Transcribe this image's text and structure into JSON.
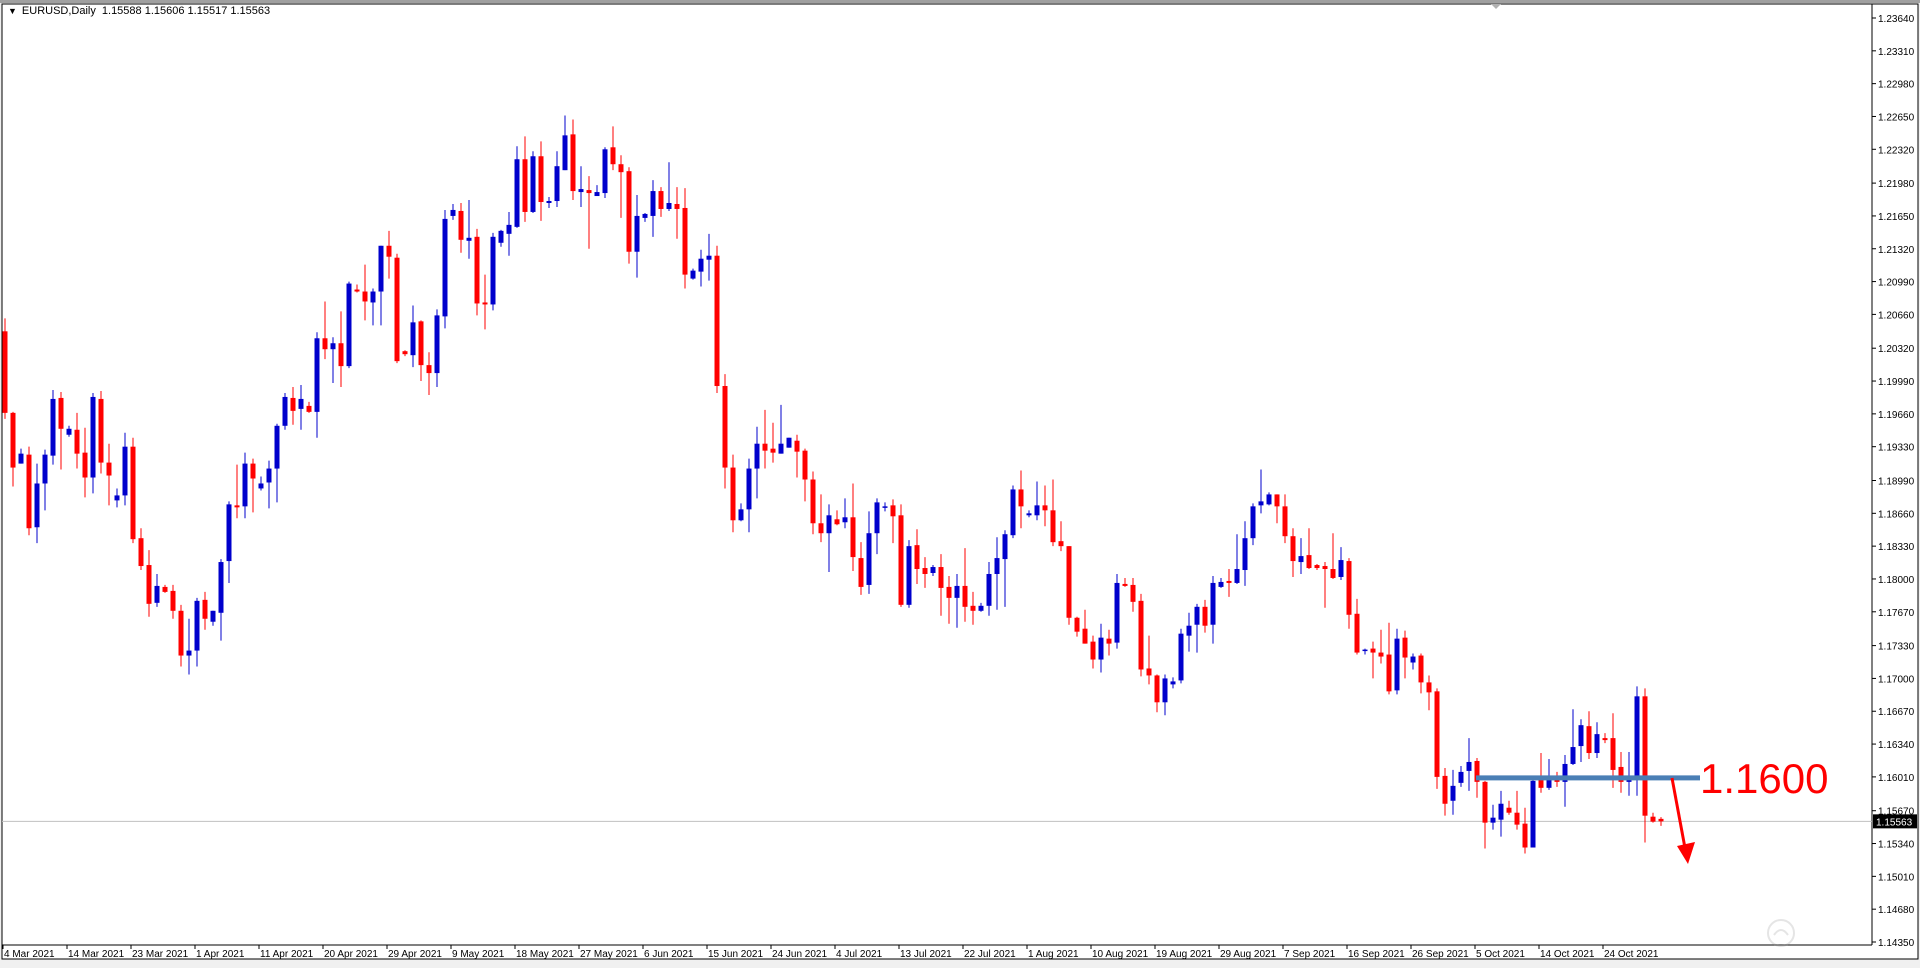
{
  "header": {
    "symbol_timeframe": "EURUSD,Daily",
    "ohlc": [
      "1.15588",
      "1.15606",
      "1.15517",
      "1.15563"
    ]
  },
  "colors": {
    "bull": "#0000cc",
    "bear": "#ff0000",
    "level_line": "#4a7fb5",
    "annotation": "#ff0000",
    "price_line": "#c0c0c0"
  },
  "annotation": {
    "level_text": "1.1600",
    "arrow": "down-arrow"
  },
  "current_price_label": "1.15563",
  "watermark": "汇外网",
  "chart_data": {
    "type": "candlestick",
    "ohlc_order": [
      "open",
      "high",
      "low",
      "close"
    ],
    "ylim": [
      1.1435,
      1.2364
    ],
    "grid": false,
    "y_tick_labels": [
      "1.23640",
      "1.23310",
      "1.22980",
      "1.22650",
      "1.22320",
      "1.21980",
      "1.21650",
      "1.21320",
      "1.20990",
      "1.20660",
      "1.20320",
      "1.19990",
      "1.19660",
      "1.19330",
      "1.18990",
      "1.18660",
      "1.18330",
      "1.18000",
      "1.17670",
      "1.17330",
      "1.17000",
      "1.16670",
      "1.16340",
      "1.16010",
      "1.15670",
      "1.15340",
      "1.15010",
      "1.14680",
      "1.14350"
    ],
    "x_tick_labels": [
      "4 Mar 2021",
      "14 Mar 2021",
      "23 Mar 2021",
      "1 Apr 2021",
      "11 Apr 2021",
      "20 Apr 2021",
      "29 Apr 2021",
      "9 May 2021",
      "18 May 2021",
      "27 May 2021",
      "6 Jun 2021",
      "15 Jun 2021",
      "24 Jun 2021",
      "4 Jul 2021",
      "13 Jul 2021",
      "22 Jul 2021",
      "1 Aug 2021",
      "10 Aug 2021",
      "19 Aug 2021",
      "29 Aug 2021",
      "7 Sep 2021",
      "16 Sep 2021",
      "26 Sep 2021",
      "5 Oct 2021",
      "14 Oct 2021",
      "24 Oct 2021"
    ],
    "bars_per_x_label": 8,
    "horizontal_level": {
      "value": 1.16,
      "from_bar": 184
    },
    "current_price": 1.15563,
    "candles": [
      [
        1.2049,
        1.2062,
        1.1961,
        1.1967
      ],
      [
        1.1967,
        1.1968,
        1.1893,
        1.1912
      ],
      [
        1.1916,
        1.1931,
        1.1916,
        1.1926
      ],
      [
        1.1925,
        1.1933,
        1.1844,
        1.1851
      ],
      [
        1.1852,
        1.1916,
        1.1836,
        1.1896
      ],
      [
        1.1896,
        1.193,
        1.1869,
        1.1925
      ],
      [
        1.1924,
        1.199,
        1.1915,
        1.1981
      ],
      [
        1.1982,
        1.1988,
        1.191,
        1.1951
      ],
      [
        1.1945,
        1.1954,
        1.1943,
        1.1951
      ],
      [
        1.195,
        1.1967,
        1.1911,
        1.1926
      ],
      [
        1.1927,
        1.1952,
        1.1882,
        1.1902
      ],
      [
        1.1902,
        1.1987,
        1.1886,
        1.1983
      ],
      [
        1.1981,
        1.1989,
        1.1906,
        1.1917
      ],
      [
        1.1917,
        1.1936,
        1.1874,
        1.1904
      ],
      [
        1.1879,
        1.1891,
        1.1872,
        1.1884
      ],
      [
        1.1884,
        1.1947,
        1.1874,
        1.1933
      ],
      [
        1.1933,
        1.1942,
        1.1836,
        1.184
      ],
      [
        1.1841,
        1.1851,
        1.1809,
        1.1813
      ],
      [
        1.1814,
        1.1829,
        1.1762,
        1.1775
      ],
      [
        1.1776,
        1.1805,
        1.1772,
        1.1793
      ],
      [
        1.1792,
        1.1794,
        1.1786,
        1.1787
      ],
      [
        1.1788,
        1.1794,
        1.176,
        1.1768
      ],
      [
        1.1768,
        1.1774,
        1.1712,
        1.1723
      ],
      [
        1.1723,
        1.176,
        1.1704,
        1.1728
      ],
      [
        1.1728,
        1.1781,
        1.1712,
        1.1778
      ],
      [
        1.1779,
        1.1787,
        1.1749,
        1.176
      ],
      [
        1.1757,
        1.1768,
        1.1753,
        1.1768
      ],
      [
        1.1766,
        1.182,
        1.1738,
        1.1817
      ],
      [
        1.1818,
        1.1878,
        1.1796,
        1.1875
      ],
      [
        1.1874,
        1.1915,
        1.1861,
        1.1872
      ],
      [
        1.1873,
        1.1927,
        1.1861,
        1.1916
      ],
      [
        1.1916,
        1.1921,
        1.1867,
        1.1901
      ],
      [
        1.1891,
        1.1903,
        1.1889,
        1.1896
      ],
      [
        1.1897,
        1.1919,
        1.1871,
        1.1911
      ],
      [
        1.1911,
        1.1956,
        1.1877,
        1.1954
      ],
      [
        1.1954,
        1.1987,
        1.195,
        1.1983
      ],
      [
        1.1982,
        1.1993,
        1.1955,
        1.1969
      ],
      [
        1.1971,
        1.1995,
        1.195,
        1.1981
      ],
      [
        1.1974,
        1.1978,
        1.1967,
        1.1968
      ],
      [
        1.1968,
        1.2048,
        1.1942,
        1.2042
      ],
      [
        1.2042,
        1.2079,
        1.2021,
        1.2031
      ],
      [
        1.2031,
        1.2043,
        1.1997,
        1.2037
      ],
      [
        1.2037,
        1.2069,
        1.1993,
        1.2014
      ],
      [
        1.2014,
        1.2099,
        1.2012,
        1.2097
      ],
      [
        1.2091,
        1.2096,
        1.2088,
        1.2089
      ],
      [
        1.2089,
        1.2116,
        1.206,
        1.2079
      ],
      [
        1.2078,
        1.2092,
        1.2055,
        1.2089
      ],
      [
        1.2089,
        1.2135,
        1.2055,
        1.2135
      ],
      [
        1.2135,
        1.215,
        1.2102,
        1.2124
      ],
      [
        1.2123,
        1.2127,
        1.2017,
        1.2019
      ],
      [
        1.2029,
        1.203,
        1.2024,
        1.2026
      ],
      [
        1.2025,
        1.2075,
        1.2013,
        1.2058
      ],
      [
        1.2059,
        1.206,
        1.1999,
        1.2015
      ],
      [
        1.2015,
        1.2028,
        1.1985,
        1.2007
      ],
      [
        1.2007,
        1.2071,
        1.1993,
        1.2065
      ],
      [
        1.2064,
        1.2171,
        1.2052,
        1.2162
      ],
      [
        1.2165,
        1.2177,
        1.2161,
        1.2171
      ],
      [
        1.217,
        1.2178,
        1.2128,
        1.2141
      ],
      [
        1.214,
        1.2181,
        1.2122,
        1.2143
      ],
      [
        1.2144,
        1.2152,
        1.2065,
        1.2077
      ],
      [
        1.2078,
        1.2106,
        1.2051,
        1.2076
      ],
      [
        1.2076,
        1.2148,
        1.207,
        1.2144
      ],
      [
        1.2138,
        1.2151,
        1.2134,
        1.215
      ],
      [
        1.2147,
        1.2169,
        1.2125,
        1.2156
      ],
      [
        1.2154,
        1.2235,
        1.2153,
        1.2222
      ],
      [
        1.2222,
        1.2245,
        1.2159,
        1.2169
      ],
      [
        1.2169,
        1.223,
        1.2168,
        1.2225
      ],
      [
        1.2225,
        1.224,
        1.216,
        1.2179
      ],
      [
        1.2178,
        1.2184,
        1.2173,
        1.218
      ],
      [
        1.218,
        1.223,
        1.2174,
        1.2215
      ],
      [
        1.2211,
        1.2266,
        1.2211,
        1.2246
      ],
      [
        1.2247,
        1.2262,
        1.2181,
        1.219
      ],
      [
        1.2189,
        1.2215,
        1.2174,
        1.2192
      ],
      [
        1.2191,
        1.2205,
        1.2132,
        1.2188
      ],
      [
        1.2185,
        1.2196,
        1.2185,
        1.2189
      ],
      [
        1.2188,
        1.2234,
        1.2183,
        1.2232
      ],
      [
        1.2234,
        1.2255,
        1.2211,
        1.2217
      ],
      [
        1.2217,
        1.2226,
        1.2163,
        1.2209
      ],
      [
        1.221,
        1.2214,
        1.2117,
        1.2129
      ],
      [
        1.2129,
        1.2186,
        1.2103,
        1.2165
      ],
      [
        1.2163,
        1.2168,
        1.2159,
        1.2167
      ],
      [
        1.2165,
        1.2201,
        1.2144,
        1.219
      ],
      [
        1.219,
        1.2194,
        1.2164,
        1.2172
      ],
      [
        1.2172,
        1.2219,
        1.217,
        1.2178
      ],
      [
        1.2177,
        1.2194,
        1.2142,
        1.2172
      ],
      [
        1.2173,
        1.2193,
        1.2092,
        1.2106
      ],
      [
        1.2102,
        1.2112,
        1.2101,
        1.211
      ],
      [
        1.2109,
        1.2131,
        1.2094,
        1.2122
      ],
      [
        1.2121,
        1.2147,
        1.21,
        1.2125
      ],
      [
        1.2125,
        1.2135,
        1.1987,
        1.1994
      ],
      [
        1.1994,
        1.2006,
        1.1891,
        1.1912
      ],
      [
        1.1912,
        1.1925,
        1.1847,
        1.1859
      ],
      [
        1.1859,
        1.1876,
        1.1858,
        1.187
      ],
      [
        1.187,
        1.1921,
        1.1847,
        1.1911
      ],
      [
        1.1911,
        1.1953,
        1.1881,
        1.1936
      ],
      [
        1.1936,
        1.197,
        1.1911,
        1.1929
      ],
      [
        1.1931,
        1.1957,
        1.1917,
        1.1927
      ],
      [
        1.1926,
        1.1975,
        1.1926,
        1.1936
      ],
      [
        1.1932,
        1.1942,
        1.1932,
        1.1942
      ],
      [
        1.1939,
        1.1945,
        1.1902,
        1.1928
      ],
      [
        1.1929,
        1.1931,
        1.1878,
        1.19
      ],
      [
        1.19,
        1.1908,
        1.1845,
        1.1856
      ],
      [
        1.1856,
        1.1885,
        1.1837,
        1.1846
      ],
      [
        1.1846,
        1.1875,
        1.1807,
        1.1864
      ],
      [
        1.186,
        1.1869,
        1.1854,
        1.1855
      ],
      [
        1.1857,
        1.1881,
        1.1851,
        1.1862
      ],
      [
        1.1862,
        1.1896,
        1.1808,
        1.1822
      ],
      [
        1.1821,
        1.1837,
        1.1784,
        1.1792
      ],
      [
        1.1794,
        1.1868,
        1.1785,
        1.1846
      ],
      [
        1.1846,
        1.1881,
        1.1825,
        1.1877
      ],
      [
        1.1872,
        1.1877,
        1.1868,
        1.1873
      ],
      [
        1.1874,
        1.188,
        1.1836,
        1.1863
      ],
      [
        1.1864,
        1.1875,
        1.1772,
        1.1774
      ],
      [
        1.1774,
        1.1839,
        1.1771,
        1.1833
      ],
      [
        1.1834,
        1.185,
        1.1795,
        1.181
      ],
      [
        1.1811,
        1.1822,
        1.1791,
        1.1805
      ],
      [
        1.1806,
        1.1814,
        1.1803,
        1.1812
      ],
      [
        1.1812,
        1.1825,
        1.1763,
        1.1791
      ],
      [
        1.1792,
        1.1803,
        1.1755,
        1.1781
      ],
      [
        1.1781,
        1.1805,
        1.1751,
        1.1793
      ],
      [
        1.1793,
        1.1831,
        1.1757,
        1.1772
      ],
      [
        1.1773,
        1.1787,
        1.1754,
        1.1768
      ],
      [
        1.1768,
        1.1776,
        1.1767,
        1.1773
      ],
      [
        1.1773,
        1.1817,
        1.1763,
        1.1805
      ],
      [
        1.1805,
        1.1842,
        1.1769,
        1.1821
      ],
      [
        1.182,
        1.1849,
        1.1772,
        1.1845
      ],
      [
        1.1844,
        1.1894,
        1.1841,
        1.189
      ],
      [
        1.189,
        1.1909,
        1.1851,
        1.1873
      ],
      [
        1.1864,
        1.1869,
        1.1862,
        1.1866
      ],
      [
        1.1864,
        1.1898,
        1.1859,
        1.1874
      ],
      [
        1.1874,
        1.1894,
        1.1853,
        1.1869
      ],
      [
        1.1869,
        1.19,
        1.1833,
        1.1837
      ],
      [
        1.1838,
        1.1858,
        1.1828,
        1.1833
      ],
      [
        1.1833,
        1.1833,
        1.1754,
        1.1761
      ],
      [
        1.1761,
        1.1762,
        1.1742,
        1.1747
      ],
      [
        1.175,
        1.1769,
        1.1735,
        1.1735
      ],
      [
        1.1737,
        1.1743,
        1.171,
        1.1719
      ],
      [
        1.1719,
        1.1755,
        1.1706,
        1.1741
      ],
      [
        1.174,
        1.1749,
        1.1723,
        1.1735
      ],
      [
        1.1736,
        1.1805,
        1.173,
        1.1796
      ],
      [
        1.1795,
        1.1801,
        1.1792,
        1.1793
      ],
      [
        1.1794,
        1.1801,
        1.1767,
        1.1777
      ],
      [
        1.1778,
        1.1785,
        1.1702,
        1.1709
      ],
      [
        1.171,
        1.1743,
        1.1694,
        1.1703
      ],
      [
        1.1703,
        1.1704,
        1.1666,
        1.1676
      ],
      [
        1.1676,
        1.1704,
        1.1663,
        1.17
      ],
      [
        1.1694,
        1.1701,
        1.169,
        1.1697
      ],
      [
        1.1698,
        1.175,
        1.1695,
        1.1745
      ],
      [
        1.1743,
        1.1766,
        1.1727,
        1.1753
      ],
      [
        1.1754,
        1.1775,
        1.1726,
        1.1772
      ],
      [
        1.1772,
        1.1779,
        1.1746,
        1.1753
      ],
      [
        1.1754,
        1.1803,
        1.1735,
        1.1796
      ],
      [
        1.1792,
        1.1801,
        1.1791,
        1.1797
      ],
      [
        1.1798,
        1.181,
        1.1782,
        1.1796
      ],
      [
        1.1796,
        1.1845,
        1.1795,
        1.181
      ],
      [
        1.1809,
        1.1858,
        1.1793,
        1.1841
      ],
      [
        1.1841,
        1.1876,
        1.1834,
        1.1873
      ],
      [
        1.1874,
        1.191,
        1.1866,
        1.1878
      ],
      [
        1.1875,
        1.1887,
        1.1874,
        1.1885
      ],
      [
        1.1885,
        1.1885,
        1.1856,
        1.1873
      ],
      [
        1.1873,
        1.1885,
        1.1836,
        1.1843
      ],
      [
        1.1843,
        1.1851,
        1.1802,
        1.1818
      ],
      [
        1.1817,
        1.1841,
        1.1805,
        1.1823
      ],
      [
        1.1824,
        1.1851,
        1.181,
        1.1811
      ],
      [
        1.1814,
        1.1815,
        1.1809,
        1.1811
      ],
      [
        1.1813,
        1.1817,
        1.1771,
        1.181
      ],
      [
        1.181,
        1.1846,
        1.18,
        1.1801
      ],
      [
        1.1802,
        1.1832,
        1.1799,
        1.1819
      ],
      [
        1.1818,
        1.1821,
        1.175,
        1.1764
      ],
      [
        1.1765,
        1.178,
        1.1724,
        1.1726
      ],
      [
        1.1729,
        1.173,
        1.1724,
        1.1729
      ],
      [
        1.173,
        1.1737,
        1.17,
        1.1726
      ],
      [
        1.1726,
        1.1749,
        1.1715,
        1.1722
      ],
      [
        1.1724,
        1.1756,
        1.1684,
        1.1687
      ],
      [
        1.1688,
        1.175,
        1.1684,
        1.174
      ],
      [
        1.1741,
        1.1748,
        1.17,
        1.1721
      ],
      [
        1.1716,
        1.1725,
        1.1709,
        1.1722
      ],
      [
        1.1723,
        1.1725,
        1.1685,
        1.1696
      ],
      [
        1.1696,
        1.1703,
        1.1668,
        1.1686
      ],
      [
        1.1687,
        1.169,
        1.1589,
        1.1601
      ],
      [
        1.1602,
        1.161,
        1.1562,
        1.1574
      ],
      [
        1.1577,
        1.1608,
        1.1563,
        1.1592
      ],
      [
        1.1595,
        1.1612,
        1.1591,
        1.1606
      ],
      [
        1.1607,
        1.164,
        1.1587,
        1.1616
      ],
      [
        1.1617,
        1.162,
        1.158,
        1.1596
      ],
      [
        1.1596,
        1.1597,
        1.1529,
        1.1555
      ],
      [
        1.1555,
        1.1573,
        1.1548,
        1.156
      ],
      [
        1.1558,
        1.1587,
        1.1541,
        1.1574
      ],
      [
        1.157,
        1.1577,
        1.1563,
        1.1565
      ],
      [
        1.1565,
        1.1587,
        1.1548,
        1.1553
      ],
      [
        1.1554,
        1.157,
        1.1524,
        1.153
      ],
      [
        1.153,
        1.16,
        1.153,
        1.1597
      ],
      [
        1.1598,
        1.1625,
        1.1585,
        1.159
      ],
      [
        1.159,
        1.1619,
        1.1588,
        1.1599
      ],
      [
        1.16,
        1.1606,
        1.1591,
        1.1596
      ],
      [
        1.1596,
        1.1623,
        1.1571,
        1.1614
      ],
      [
        1.1614,
        1.1669,
        1.1613,
        1.1631
      ],
      [
        1.1632,
        1.1659,
        1.1616,
        1.1653
      ],
      [
        1.1652,
        1.1667,
        1.1619,
        1.1625
      ],
      [
        1.1625,
        1.1656,
        1.162,
        1.1644
      ],
      [
        1.164,
        1.1645,
        1.1635,
        1.1638
      ],
      [
        1.164,
        1.1665,
        1.159,
        1.1608
      ],
      [
        1.1611,
        1.1626,
        1.1585,
        1.1596
      ],
      [
        1.1596,
        1.1626,
        1.1582,
        1.1599
      ],
      [
        1.1599,
        1.1692,
        1.1582,
        1.1682
      ],
      [
        1.1682,
        1.169,
        1.1535,
        1.1562
      ],
      [
        1.1561,
        1.1565,
        1.1555,
        1.1556
      ],
      [
        1.15588,
        1.15606,
        1.15517,
        1.15563
      ]
    ]
  }
}
